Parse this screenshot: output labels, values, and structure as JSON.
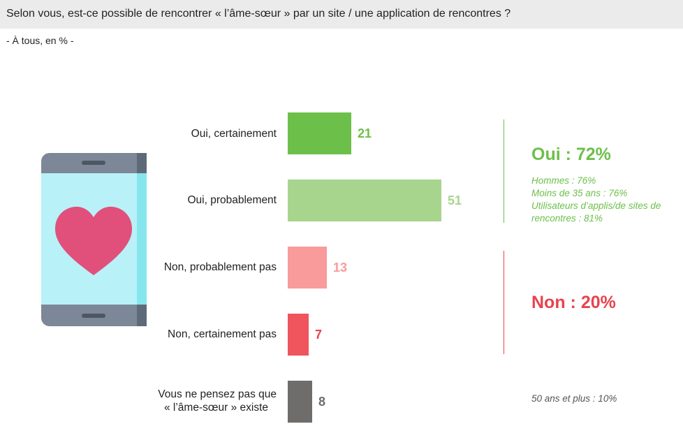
{
  "header": {
    "question": "Selon vous, est-ce possible de rencontrer « l’âme-sœur » par un site / une application de rencontres ?",
    "subtitle": "- À tous, en % -"
  },
  "chart_data": {
    "type": "bar",
    "orientation": "horizontal",
    "unit": "%",
    "categories": [
      "Oui, certainement",
      "Oui, probablement",
      "Non, probablement pas",
      "Non, certainement pas",
      "Vous ne pensez pas que « l’âme-sœur » existe"
    ],
    "category_lines": [
      [
        "Oui, certainement"
      ],
      [
        "Oui, probablement"
      ],
      [
        "Non, probablement pas"
      ],
      [
        "Non, certainement pas"
      ],
      [
        "Vous ne pensez pas que",
        "« l’âme-sœur » existe"
      ]
    ],
    "values": [
      21,
      51,
      13,
      7,
      8
    ],
    "colors": [
      "#6cc04a",
      "#a8d58e",
      "#f99b9b",
      "#f0545c",
      "#6f6c6c"
    ],
    "value_label_colors": [
      "#6cc04a",
      "#a8d58e",
      "#f99b9b",
      "#e8434d",
      "#6f6c6c"
    ]
  },
  "summary": {
    "oui": {
      "label": "Oui : 72%",
      "color": "#6cc04a",
      "details": [
        "Hommes : 76%",
        "Moins de 35 ans : 76%",
        "Utilisateurs d’applis/de sites de rencontres : 81%"
      ]
    },
    "non": {
      "label": "Non : 20%",
      "color": "#e8434d"
    },
    "note": "50 ans et plus : 10%"
  },
  "illustration": {
    "icon": "smartphone-heart-icon",
    "colors": {
      "frame": "#7c8797",
      "screen": "#b9f1f8",
      "heart": "#e0507b"
    }
  }
}
